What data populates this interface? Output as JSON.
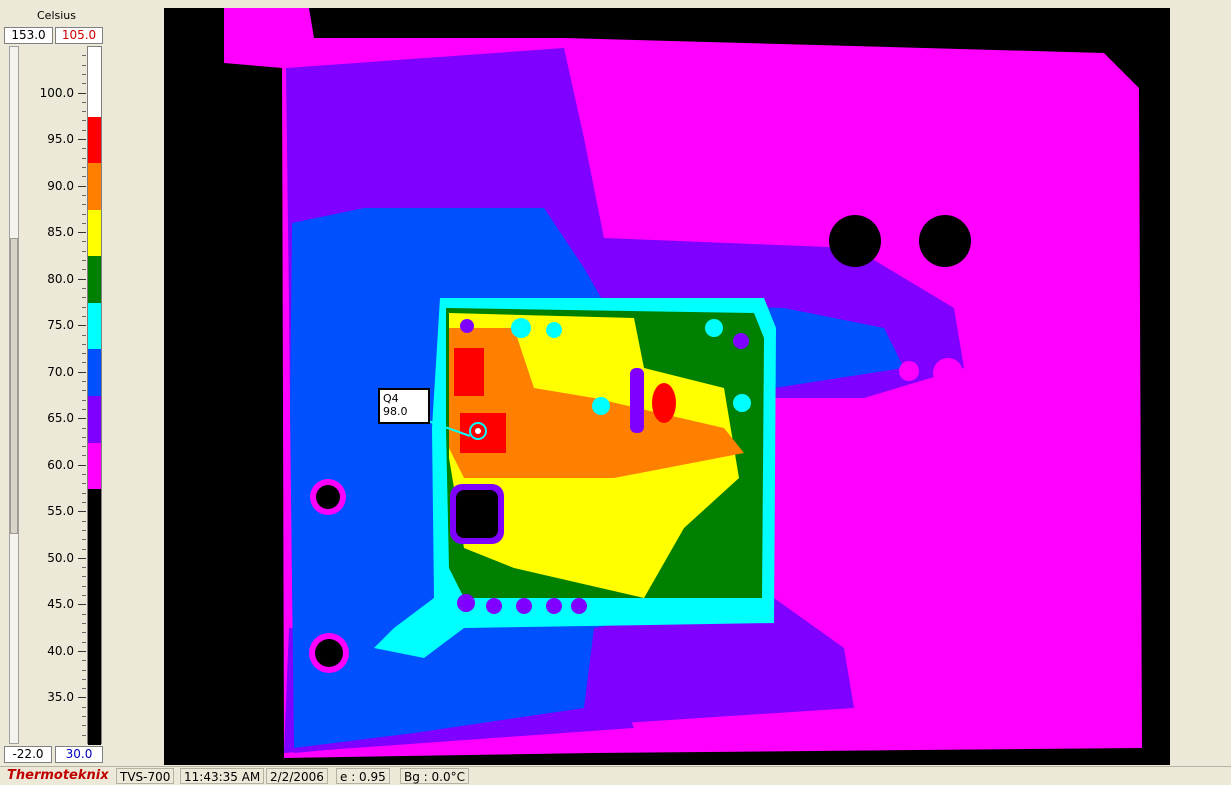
{
  "scale": {
    "unit": "Celsius",
    "range_max": "153.0",
    "range_max_active": "105.0",
    "range_min": "-22.0",
    "range_min_active": "30.0",
    "tick_labels": [
      "100.0",
      "95.0",
      "90.0",
      "85.0",
      "80.0",
      "75.0",
      "70.0",
      "65.0",
      "60.0",
      "55.0",
      "50.0",
      "45.0",
      "40.0",
      "35.0"
    ],
    "palette_bands": [
      {
        "from": 97.5,
        "to": 105.0,
        "color": "#ffffff"
      },
      {
        "from": 92.5,
        "to": 97.5,
        "color": "#ff0000"
      },
      {
        "from": 87.5,
        "to": 92.5,
        "color": "#ff8000"
      },
      {
        "from": 82.5,
        "to": 87.5,
        "color": "#ffff00"
      },
      {
        "from": 77.5,
        "to": 82.5,
        "color": "#008000"
      },
      {
        "from": 72.5,
        "to": 77.5,
        "color": "#00ffff"
      },
      {
        "from": 67.5,
        "to": 72.5,
        "color": "#0050ff"
      },
      {
        "from": 62.5,
        "to": 67.5,
        "color": "#8000ff"
      },
      {
        "from": 57.5,
        "to": 62.5,
        "color": "#ff00ff"
      },
      {
        "from": 30.0,
        "to": 57.5,
        "color": "#000000"
      }
    ]
  },
  "marker": {
    "label": "Q4",
    "value": "98.0"
  },
  "status_bar": {
    "brand": "Thermoteknix",
    "model": "TVS-700",
    "time": "11:43:35 AM",
    "date": "2/2/2006",
    "emissivity": "e : 0.95",
    "background_temp": "Bg : 0.0°C"
  },
  "colors": {
    "black": "#000000",
    "magenta": "#ff00ff",
    "violet": "#8000ff",
    "blue": "#0050ff",
    "cyan": "#00ffff",
    "green": "#008000",
    "yellow": "#ffff00",
    "orange": "#ff8000",
    "red": "#ff0000",
    "white": "#ffffff"
  }
}
